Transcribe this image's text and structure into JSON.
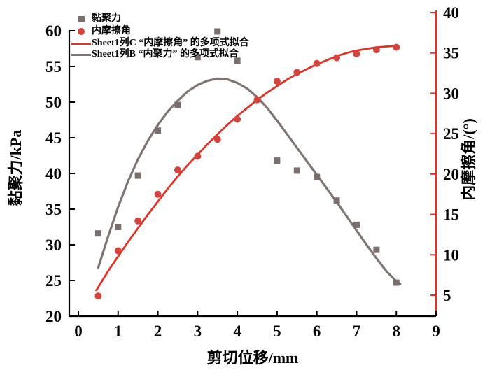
{
  "figure": {
    "background": "#ffffff"
  },
  "legend": {
    "items": [
      {
        "label": "黏聚力",
        "marker": "square",
        "color": "#7a6f6c"
      },
      {
        "label": "内摩擦角",
        "marker": "circle",
        "color": "#d5443c"
      },
      {
        "label": "Sheet1列C “内摩擦角” 的多项式拟合",
        "marker": "line",
        "color": "#e03328"
      },
      {
        "label": "Sheet1列B “内聚力” 的多项式拟合",
        "marker": "line",
        "color": "#7e7572"
      }
    ]
  },
  "axes": {
    "x": {
      "title": "剪切位移/mm",
      "range": [
        0,
        9
      ],
      "ticks": [
        0,
        1,
        2,
        3,
        4,
        5,
        6,
        7,
        8,
        9
      ]
    },
    "y_left": {
      "title": "黏聚力/kPa",
      "range": [
        20,
        60
      ],
      "ticks": [
        20,
        25,
        30,
        35,
        40,
        45,
        50,
        55,
        60
      ],
      "color": "#000000"
    },
    "y_right": {
      "title": "内摩擦角/(°)",
      "range": [
        2.5,
        40.3
      ],
      "ticks": [
        5,
        10,
        15,
        20,
        25,
        30,
        35,
        40
      ],
      "color": "#e03328"
    }
  },
  "chart_data": {
    "type": "scatter",
    "title": "",
    "xlabel": "剪切位移/mm",
    "ylabel_left": "黏聚力/kPa",
    "ylabel_right": "内摩擦角/(°)",
    "xlim": [
      0,
      9
    ],
    "ylim_left": [
      20,
      60
    ],
    "ylim_right": [
      2.5,
      40.3
    ],
    "grid": false,
    "legend_position": "top-left-inside",
    "series": [
      {
        "name": "黏聚力",
        "type": "scatter",
        "marker": "square",
        "axis": "left",
        "color": "#7a6f6c",
        "points": [
          [
            0.5,
            31.6
          ],
          [
            1,
            32.5
          ],
          [
            1.5,
            39.7
          ],
          [
            2,
            46.0
          ],
          [
            2.5,
            49.6
          ],
          [
            3,
            56.3
          ],
          [
            3.5,
            59.9
          ],
          [
            4,
            55.8
          ],
          [
            5,
            41.8
          ],
          [
            5.5,
            40.4
          ],
          [
            6,
            39.5
          ],
          [
            6.5,
            36.2
          ],
          [
            7,
            32.8
          ],
          [
            7.5,
            29.3
          ],
          [
            8,
            24.7
          ]
        ]
      },
      {
        "name": "内摩擦角",
        "type": "scatter",
        "marker": "circle",
        "axis": "right",
        "color": "#d5443c",
        "points": [
          [
            0.5,
            4.9
          ],
          [
            1,
            10.5
          ],
          [
            1.5,
            14.2
          ],
          [
            2,
            17.5
          ],
          [
            2.5,
            20.5
          ],
          [
            3,
            22.2
          ],
          [
            3.5,
            24.3
          ],
          [
            4,
            26.8
          ],
          [
            4.5,
            29.2
          ],
          [
            5,
            31.5
          ],
          [
            5.5,
            32.6
          ],
          [
            6,
            33.7
          ],
          [
            6.5,
            34.4
          ],
          [
            7,
            34.9
          ],
          [
            7.5,
            35.4
          ],
          [
            8,
            35.7
          ]
        ]
      },
      {
        "name": "Sheet1列C “内摩擦角” 的多项式拟合",
        "type": "line",
        "axis": "right",
        "color": "#e03328",
        "width": 2.8,
        "points": [
          [
            0.45,
            5.6
          ],
          [
            0.75,
            8.0
          ],
          [
            1,
            9.8
          ],
          [
            1.25,
            11.6
          ],
          [
            1.5,
            13.3
          ],
          [
            1.75,
            15.0
          ],
          [
            2,
            16.6
          ],
          [
            2.25,
            18.2
          ],
          [
            2.5,
            19.7
          ],
          [
            2.75,
            21.1
          ],
          [
            3,
            22.4
          ],
          [
            3.25,
            23.7
          ],
          [
            3.5,
            24.9
          ],
          [
            3.75,
            26.1
          ],
          [
            4,
            27.2
          ],
          [
            4.25,
            28.2
          ],
          [
            4.5,
            29.2
          ],
          [
            4.75,
            30.1
          ],
          [
            5,
            30.9
          ],
          [
            5.25,
            31.7
          ],
          [
            5.5,
            32.4
          ],
          [
            5.75,
            33.0
          ],
          [
            6,
            33.6
          ],
          [
            6.25,
            34.1
          ],
          [
            6.5,
            34.6
          ],
          [
            6.75,
            35.0
          ],
          [
            7,
            35.3
          ],
          [
            7.25,
            35.5
          ],
          [
            7.5,
            35.7
          ],
          [
            7.75,
            35.8
          ],
          [
            8,
            35.9
          ],
          [
            8.05,
            35.9
          ]
        ]
      },
      {
        "name": "Sheet1列B “内聚力” 的多项式拟合",
        "type": "line",
        "axis": "left",
        "color": "#7e7572",
        "width": 3.2,
        "points": [
          [
            0.5,
            26.8
          ],
          [
            0.75,
            31.2
          ],
          [
            1,
            35.3
          ],
          [
            1.25,
            38.9
          ],
          [
            1.5,
            42.0
          ],
          [
            1.75,
            44.6
          ],
          [
            2,
            46.8
          ],
          [
            2.25,
            48.7
          ],
          [
            2.5,
            50.2
          ],
          [
            2.75,
            51.5
          ],
          [
            3,
            52.4
          ],
          [
            3.25,
            53.0
          ],
          [
            3.5,
            53.3
          ],
          [
            3.75,
            53.2
          ],
          [
            4,
            52.7
          ],
          [
            4.25,
            51.9
          ],
          [
            4.5,
            50.7
          ],
          [
            4.75,
            49.2
          ],
          [
            5,
            47.4
          ],
          [
            5.25,
            45.5
          ],
          [
            5.5,
            43.6
          ],
          [
            5.75,
            41.7
          ],
          [
            6,
            39.8
          ],
          [
            6.25,
            37.9
          ],
          [
            6.5,
            36.0
          ],
          [
            6.75,
            34.0
          ],
          [
            7,
            32.0
          ],
          [
            7.25,
            30.0
          ],
          [
            7.5,
            28.1
          ],
          [
            7.75,
            26.3
          ],
          [
            8,
            24.9
          ],
          [
            8.1,
            24.5
          ]
        ]
      }
    ]
  }
}
